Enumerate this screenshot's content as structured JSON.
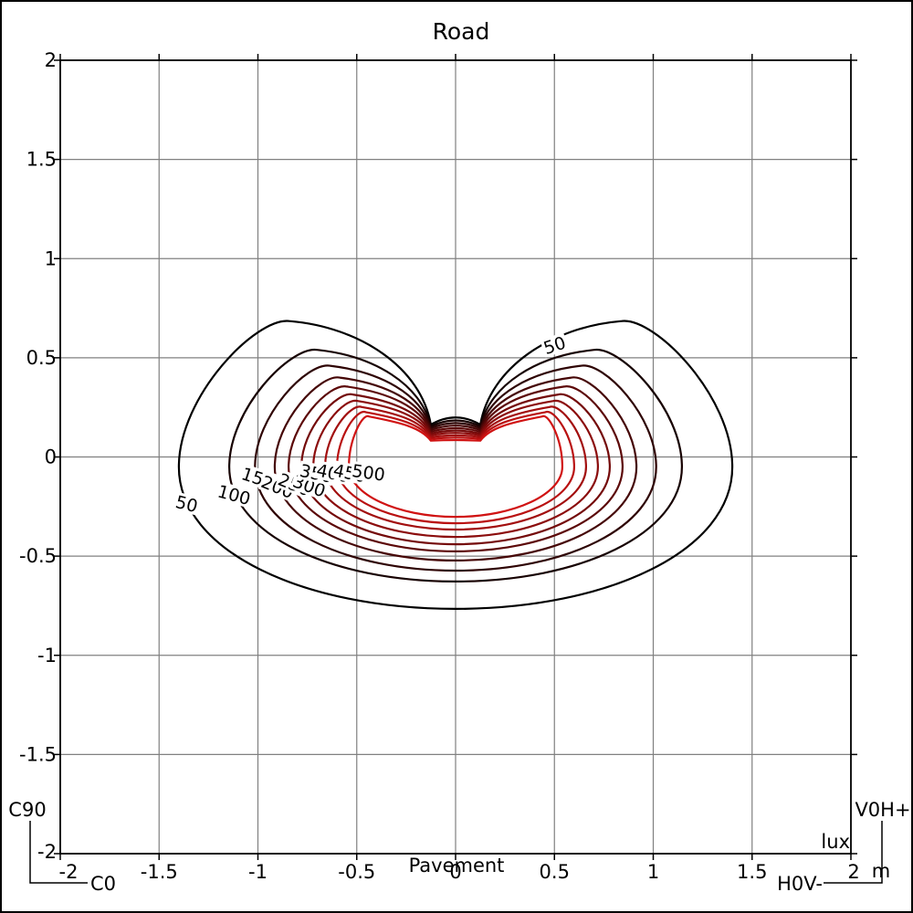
{
  "title": "Road",
  "corner_labels": {
    "left_vertical": "C90",
    "left_horizontal": "C0",
    "right_vertical": "V0H+",
    "right_horizontal": "H0V-"
  },
  "chart_data": {
    "type": "contour",
    "title": "Road",
    "xlabel": "Pavement",
    "unit_value": "lux",
    "unit_distance": "m",
    "xlim": [
      -2,
      2
    ],
    "ylim": [
      -2,
      2
    ],
    "grid": true,
    "grid_color": "#808080",
    "x_ticks": [
      "-2",
      "-1.5",
      "-1",
      "-0.5",
      "0",
      "0.5",
      "1",
      "1.5",
      "2"
    ],
    "x_tick_values": [
      -2,
      -1.5,
      -1,
      -0.5,
      0,
      0.5,
      1,
      1.5,
      2
    ],
    "y_ticks": [
      "2",
      "1.5",
      "1",
      "0.5",
      "0",
      "-0.5",
      "-1",
      "-1.5",
      "-2"
    ],
    "y_tick_values": [
      2,
      1.5,
      1,
      0.5,
      0,
      -0.5,
      -1,
      -1.5,
      -2
    ],
    "levels": [
      50,
      100,
      150,
      200,
      250,
      300,
      350,
      400,
      450,
      500
    ],
    "level_colors": [
      "#000000",
      "#170202",
      "#2e0404",
      "#450606",
      "#5c0808",
      "#740a0a",
      "#8b0c0c",
      "#a20e0e",
      "#b91010",
      "#d01212"
    ],
    "contours": [
      {
        "level": 50,
        "color": "#000000",
        "half_width": 1.4,
        "bottom_y": -0.766,
        "lobe_x": 0.84,
        "lobe_y": 0.685,
        "notch_x": 0.125,
        "notch_y": 0.163,
        "bump": 0.036
      },
      {
        "level": 100,
        "color": "#170202",
        "half_width": 1.145,
        "bottom_y": -0.628,
        "lobe_x": 0.7,
        "lobe_y": 0.54,
        "notch_x": 0.125,
        "notch_y": 0.154,
        "bump": 0.03
      },
      {
        "level": 150,
        "color": "#2e0404",
        "half_width": 1.015,
        "bottom_y": -0.573,
        "lobe_x": 0.635,
        "lobe_y": 0.46,
        "notch_x": 0.125,
        "notch_y": 0.145,
        "bump": 0.026
      },
      {
        "level": 200,
        "color": "#450606",
        "half_width": 0.915,
        "bottom_y": -0.522,
        "lobe_x": 0.585,
        "lobe_y": 0.4,
        "notch_x": 0.125,
        "notch_y": 0.136,
        "bump": 0.022
      },
      {
        "level": 250,
        "color": "#5c0808",
        "half_width": 0.845,
        "bottom_y": -0.476,
        "lobe_x": 0.55,
        "lobe_y": 0.355,
        "notch_x": 0.125,
        "notch_y": 0.127,
        "bump": 0.018
      },
      {
        "level": 300,
        "color": "#740a0a",
        "half_width": 0.78,
        "bottom_y": -0.44,
        "lobe_x": 0.52,
        "lobe_y": 0.315,
        "notch_x": 0.125,
        "notch_y": 0.118,
        "bump": 0.015
      },
      {
        "level": 350,
        "color": "#8b0c0c",
        "half_width": 0.72,
        "bottom_y": -0.403,
        "lobe_x": 0.495,
        "lobe_y": 0.282,
        "notch_x": 0.125,
        "notch_y": 0.109,
        "bump": 0.012
      },
      {
        "level": 400,
        "color": "#a20e0e",
        "half_width": 0.66,
        "bottom_y": -0.366,
        "lobe_x": 0.475,
        "lobe_y": 0.252,
        "notch_x": 0.125,
        "notch_y": 0.1,
        "bump": 0.009
      },
      {
        "level": 450,
        "color": "#b91010",
        "half_width": 0.6,
        "bottom_y": -0.334,
        "lobe_x": 0.455,
        "lobe_y": 0.226,
        "notch_x": 0.125,
        "notch_y": 0.091,
        "bump": 0.006
      },
      {
        "level": 500,
        "color": "#d01212",
        "half_width": 0.54,
        "bottom_y": -0.302,
        "lobe_x": 0.438,
        "lobe_y": 0.204,
        "notch_x": 0.125,
        "notch_y": 0.082,
        "bump": 0.003
      }
    ],
    "contour_labels": [
      {
        "text": "50",
        "x": -1.36,
        "y": -0.235,
        "rot": 14
      },
      {
        "text": "100",
        "x": -1.12,
        "y": -0.19,
        "rot": 15
      },
      {
        "text": "150",
        "x": -1.0,
        "y": -0.105,
        "rot": 18
      },
      {
        "text": "200",
        "x": -0.9,
        "y": -0.15,
        "rot": 22
      },
      {
        "text": "250",
        "x": -0.815,
        "y": -0.138,
        "rot": 22
      },
      {
        "text": "300",
        "x": -0.74,
        "y": -0.145,
        "rot": 20
      },
      {
        "text": "350",
        "x": -0.705,
        "y": -0.082,
        "rot": 12
      },
      {
        "text": "400",
        "x": -0.62,
        "y": -0.08,
        "rot": 12
      },
      {
        "text": "450",
        "x": -0.535,
        "y": -0.08,
        "rot": 12
      },
      {
        "text": "500",
        "x": -0.44,
        "y": -0.078,
        "rot": 8
      },
      {
        "text": "50",
        "x": 0.5,
        "y": 0.565,
        "rot": -18
      }
    ]
  }
}
